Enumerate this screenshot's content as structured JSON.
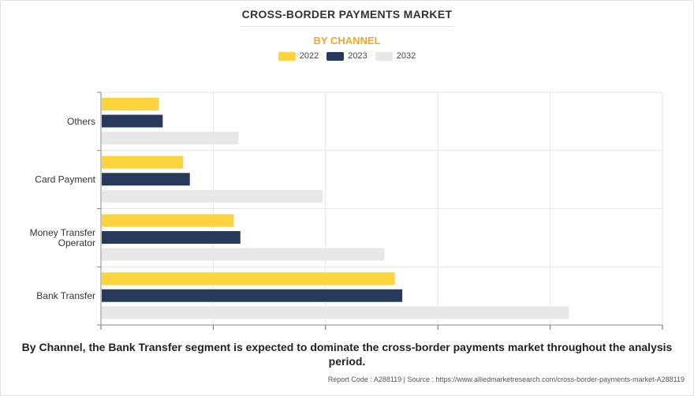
{
  "header": {
    "title": "CROSS-BORDER PAYMENTS MARKET",
    "subtitle": "BY CHANNEL"
  },
  "legend": [
    {
      "label": "2022",
      "color": "#FDD33E"
    },
    {
      "label": "2023",
      "color": "#273A5B"
    },
    {
      "label": "2032",
      "color": "#E8E8E8"
    }
  ],
  "chart_data": {
    "type": "bar",
    "orientation": "horizontal",
    "categories": [
      "Others",
      "Card Payment",
      "Money Transfer Operator",
      "Bank Transfer"
    ],
    "series": [
      {
        "name": "2022",
        "color": "#FDD33E",
        "values": [
          6.2,
          8.8,
          14.2,
          31.4
        ]
      },
      {
        "name": "2023",
        "color": "#273A5B",
        "values": [
          6.6,
          9.5,
          14.9,
          32.2
        ]
      },
      {
        "name": "2032",
        "color": "#E8E8E8",
        "values": [
          14.7,
          23.7,
          30.3,
          50.0
        ]
      }
    ],
    "xlim": [
      0,
      60
    ],
    "grid": true,
    "legend_position": "top"
  },
  "caption": "By Channel, the Bank Transfer segment is expected to dominate the cross-border payments market throughout the analysis period.",
  "footer": "Report Code : A288119  |  Source : https://www.alliedmarketresearch.com/cross-border-payments-market-A288119"
}
